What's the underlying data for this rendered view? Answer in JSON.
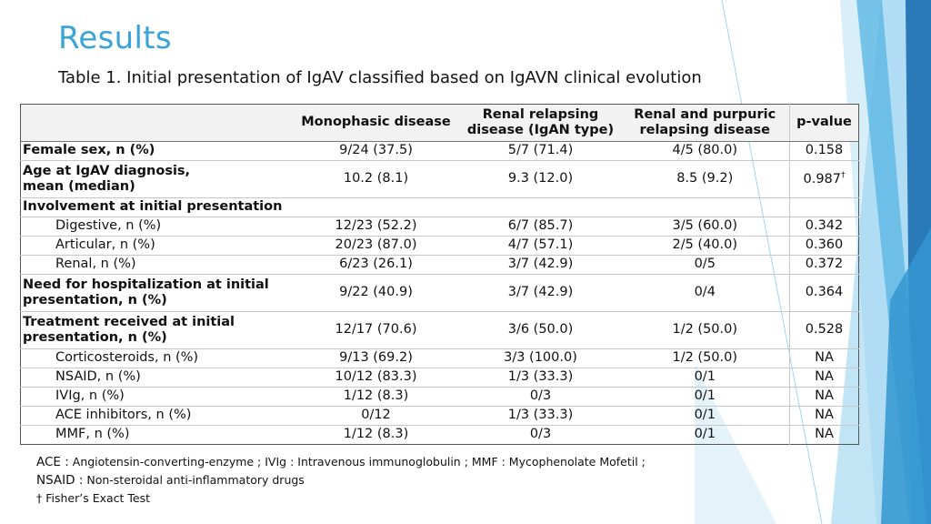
{
  "title": "Results",
  "subtitle": "Table 1. Initial presentation of IgAV classified based on IgAVN clinical evolution",
  "table": {
    "headers": [
      "",
      "Monophasic disease",
      "Renal relapsing\ndisease (IgAN type)",
      "Renal and purpuric\nrelapsing disease",
      "p-value"
    ],
    "rows": [
      {
        "label": "Female sex, n (%)",
        "c1": "9/24 (37.5)",
        "c2": "5/7 (71.4)",
        "c3": "4/5 (80.0)",
        "p": "0.158",
        "sup": ""
      },
      {
        "label": "Age at IgAV diagnosis,\nmean (median)",
        "c1": "10.2 (8.1)",
        "c2": "9.3 (12.0)",
        "c3": "8.5 (9.2)",
        "p": "0.987",
        "sup": "†"
      },
      {
        "label": "Involvement at initial presentation",
        "c1": "",
        "c2": "",
        "c3": "",
        "p": "",
        "sup": ""
      },
      {
        "label": "Digestive, n (%)",
        "c1": "12/23 (52.2)",
        "c2": "6/7 (85.7)",
        "c3": "3/5 (60.0)",
        "p": "0.342",
        "sup": ""
      },
      {
        "label": "Articular, n (%)",
        "c1": "20/23 (87.0)",
        "c2": "4/7 (57.1)",
        "c3": "2/5 (40.0)",
        "p": "0.360",
        "sup": ""
      },
      {
        "label": "Renal, n (%)",
        "c1": "6/23 (26.1)",
        "c2": "3/7 (42.9)",
        "c3": "0/5",
        "p": "0.372",
        "sup": ""
      },
      {
        "label": "Need for hospitalization at initial\npresentation, n (%)",
        "c1": "9/22 (40.9)",
        "c2": "3/7 (42.9)",
        "c3": "0/4",
        "p": "0.364",
        "sup": ""
      },
      {
        "label": "Treatment received at initial\npresentation, n (%)",
        "c1": "12/17 (70.6)",
        "c2": "3/6 (50.0)",
        "c3": "1/2 (50.0)",
        "p": "0.528",
        "sup": ""
      },
      {
        "label": "Corticosteroids, n (%)",
        "c1": "9/13 (69.2)",
        "c2": "3/3 (100.0)",
        "c3": "1/2 (50.0)",
        "p": "NA",
        "sup": ""
      },
      {
        "label": "NSAID, n (%)",
        "c1": "10/12 (83.3)",
        "c2": "1/3 (33.3)",
        "c3": "0/1",
        "p": "NA",
        "sup": ""
      },
      {
        "label": "IVIg, n (%)",
        "c1": "1/12 (8.3)",
        "c2": "0/3",
        "c3": "0/1",
        "p": "NA",
        "sup": ""
      },
      {
        "label": "ACE inhibitors, n (%)",
        "c1": "0/12",
        "c2": "1/3 (33.3)",
        "c3": "0/1",
        "p": "NA",
        "sup": ""
      },
      {
        "label": "MMF, n (%)",
        "c1": "1/12 (8.3)",
        "c2": "0/3",
        "c3": "0/1",
        "p": "NA",
        "sup": ""
      }
    ]
  },
  "footnotes": {
    "line1_key": "ACE :",
    "line1_text": " Angiotensin-converting-enzyme ; IVIg : Intravenous immunoglobulin ; MMF : Mycophenolate Mofetil ;",
    "line2_key": "NSAID :",
    "line2_text": " Non-steroidal anti-inflammatory drugs",
    "line3_mark": "†",
    "line3_text": " Fisher’s Exact Test"
  },
  "colors": {
    "title": "#3aa3d8",
    "accent_dark": "#2a79b8",
    "accent_light": "#6cc6ea"
  }
}
